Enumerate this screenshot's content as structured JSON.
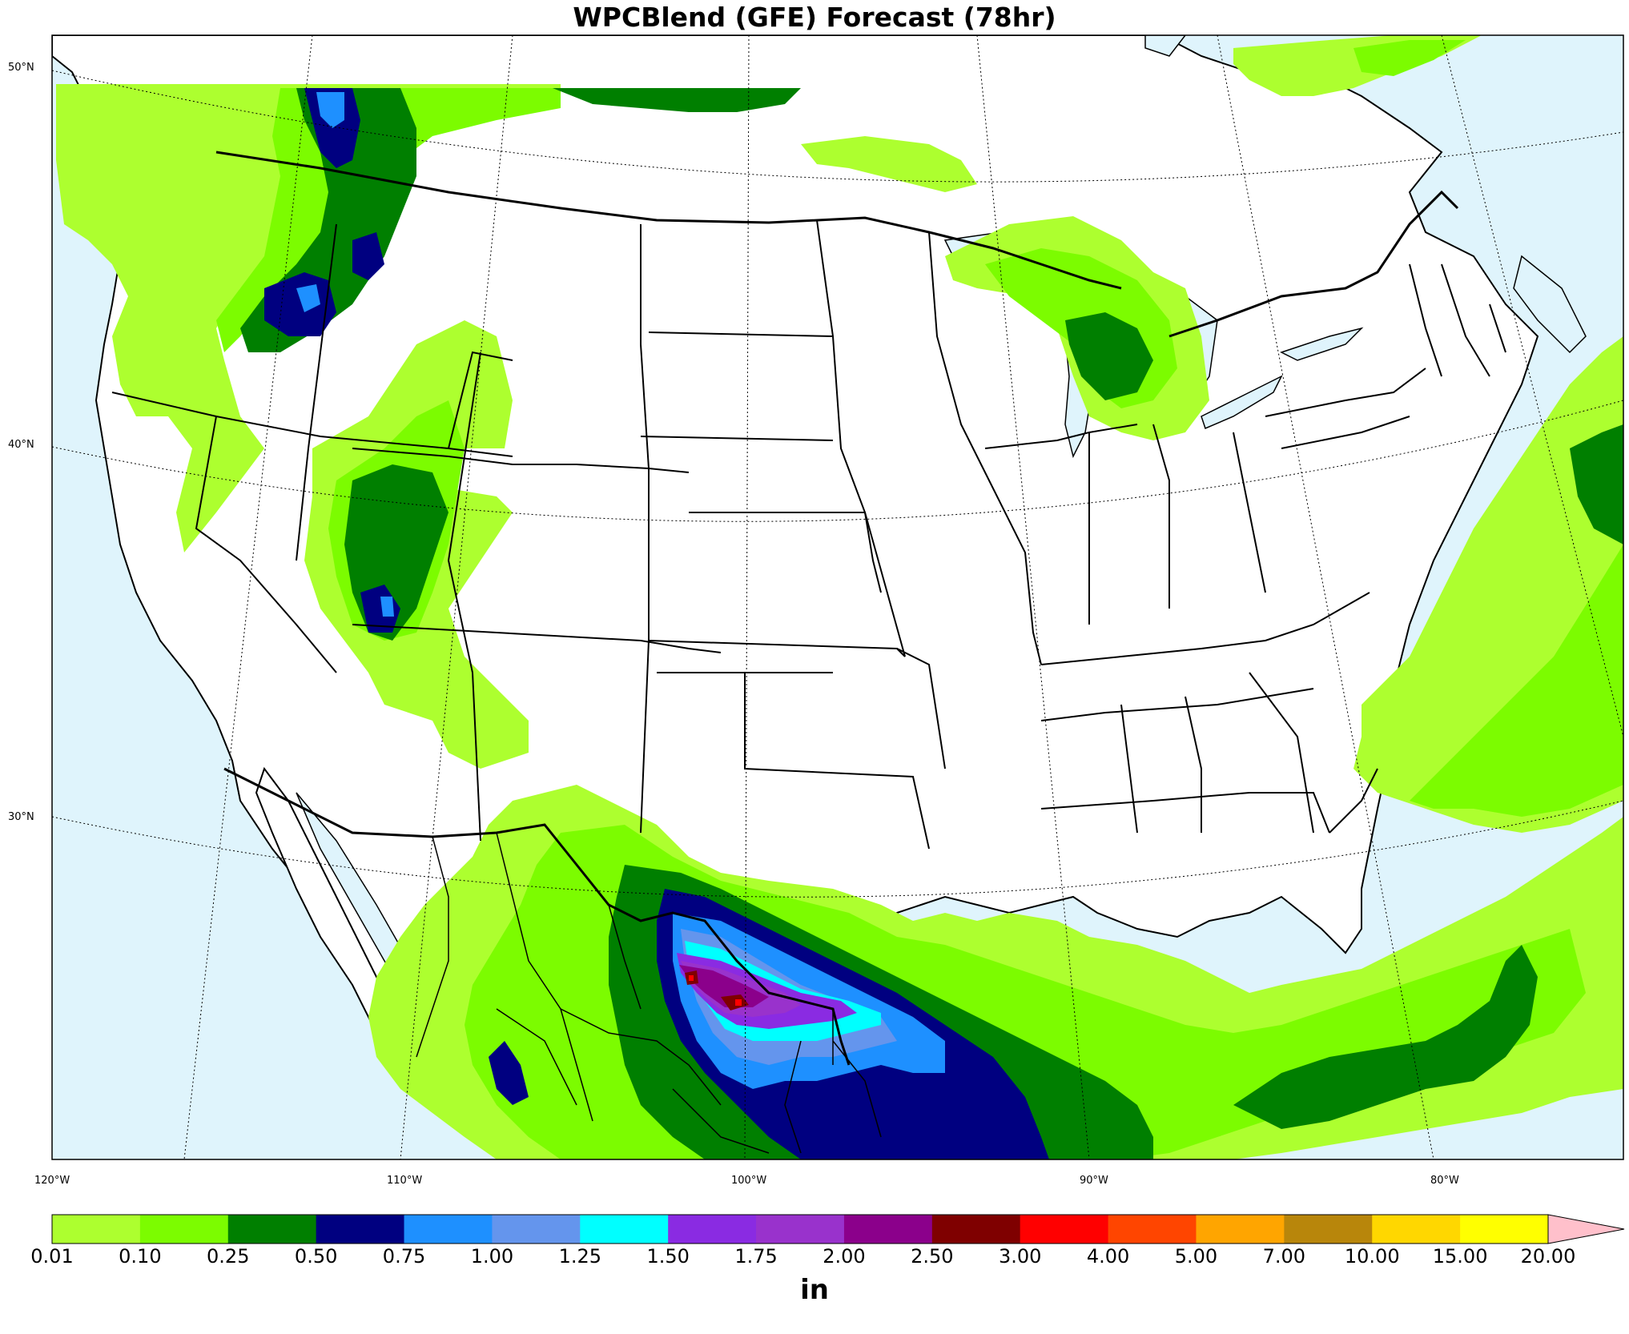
{
  "title": "WPCBlend (GFE) Forecast (78hr)",
  "lat_labels": [
    "50°N",
    "40°N",
    "30°N"
  ],
  "lon_labels": [
    "120°W",
    "110°W",
    "100°W",
    "90°W",
    "80°W"
  ],
  "colorbar": {
    "unit": "in",
    "ticks": [
      "0.01",
      "0.10",
      "0.25",
      "0.50",
      "0.75",
      "1.00",
      "1.25",
      "1.50",
      "1.75",
      "2.00",
      "2.50",
      "3.00",
      "4.00",
      "5.00",
      "7.00",
      "10.00",
      "15.00",
      "20.00"
    ],
    "colors": [
      "#adff2f",
      "#7cfc00",
      "#007f00",
      "#000080",
      "#1e90ff",
      "#6495ed",
      "#00ffff",
      "#8a2be2",
      "#9932cc",
      "#8b008b",
      "#7f0000",
      "#ff0000",
      "#ff4500",
      "#ffa500",
      "#b8860b",
      "#ffd700",
      "#ffff00"
    ],
    "extend_color": "#ffc0cb"
  },
  "colors": {
    "ocean": "#dff4fc",
    "land": "#ffffff"
  }
}
